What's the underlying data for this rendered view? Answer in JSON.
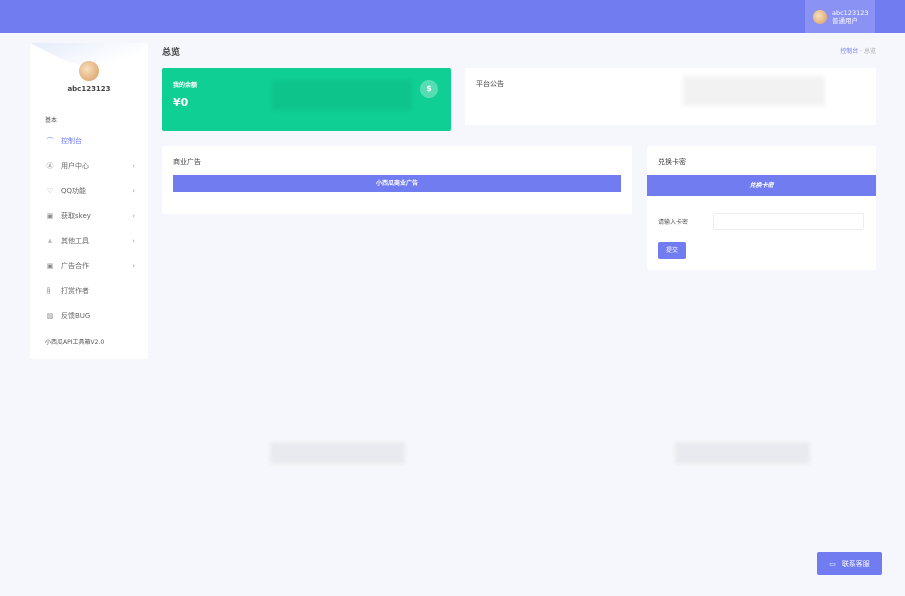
{
  "header": {
    "username": "abc123123",
    "role": "普通用户"
  },
  "sidebar": {
    "username": "abc123123",
    "section": "基本",
    "items": [
      {
        "icon": "dashboard-icon",
        "glyph": "⌒",
        "label": "控制台",
        "active": true,
        "chevron": false
      },
      {
        "icon": "user-icon",
        "glyph": "Ⓐ",
        "label": "用户中心",
        "chevron": true
      },
      {
        "icon": "shield-icon",
        "glyph": "♡",
        "label": "QQ功能",
        "chevron": true
      },
      {
        "icon": "key-icon",
        "glyph": "▣",
        "label": "获取skey",
        "chevron": true
      },
      {
        "icon": "tools-icon",
        "glyph": "⩓",
        "label": "其他工具",
        "chevron": true
      },
      {
        "icon": "ad-icon",
        "glyph": "▣",
        "label": "广告合作",
        "chevron": true
      },
      {
        "icon": "reward-icon",
        "glyph": "⺼",
        "label": "打赏作者",
        "chevron": false
      },
      {
        "icon": "bug-icon",
        "glyph": "▨",
        "label": "反馈BUG",
        "chevron": false
      }
    ],
    "version": "小西瓜API工具箱V2.0"
  },
  "page": {
    "title": "总览",
    "breadcrumb": [
      "控制台",
      "总览"
    ]
  },
  "balance": {
    "label": "我的余额",
    "value": "¥0",
    "icon": "dollar-icon"
  },
  "notice": {
    "title": "平台公告"
  },
  "ads": {
    "title": "商业广告",
    "banner": "小西瓜商业广告"
  },
  "redeem": {
    "title": "兑换卡密",
    "banner": "兑换卡密",
    "input_label": "请输入卡密",
    "input_value": "",
    "submit": "提交"
  },
  "contact": {
    "label": "联系客服"
  },
  "colors": {
    "primary": "#717cf1",
    "green": "#0fcf94"
  }
}
